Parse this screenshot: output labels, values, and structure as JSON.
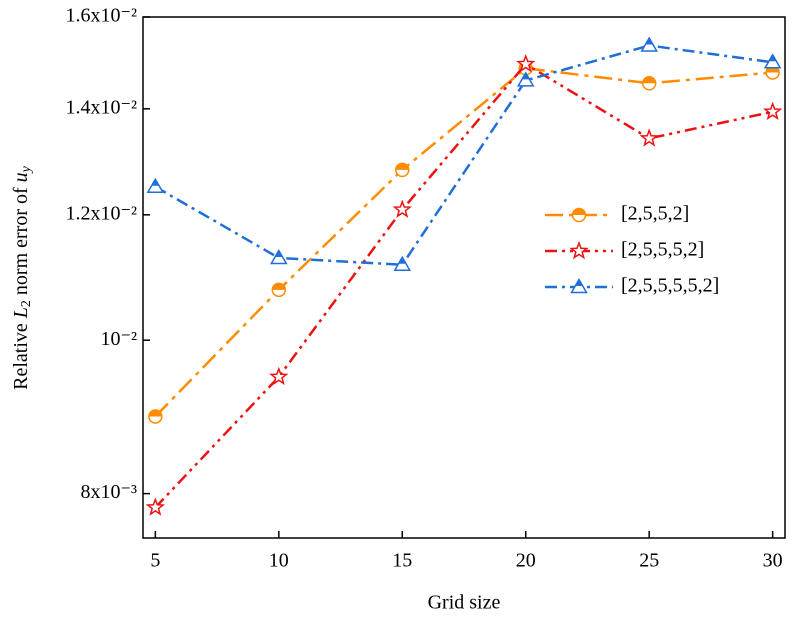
{
  "chart_data": {
    "type": "line",
    "x_label": "Grid size",
    "y_label": [
      "Relative ",
      "L",
      "2",
      " norm error of ",
      "u",
      "y"
    ],
    "x": [
      5,
      10,
      15,
      20,
      25,
      30
    ],
    "xlim": [
      4.5,
      30.5
    ],
    "xticks": [
      5,
      10,
      15,
      20,
      25,
      30
    ],
    "ylim": [
      0.0075,
      0.016
    ],
    "yticks": [
      {
        "value": 0.008,
        "label": "8x10⁻³"
      },
      {
        "value": 0.01,
        "label": "10⁻²"
      },
      {
        "value": 0.012,
        "label": "1.2x10⁻²"
      },
      {
        "value": 0.014,
        "label": "1.4x10⁻²"
      },
      {
        "value": 0.016,
        "label": "1.6x10⁻²"
      }
    ],
    "log_y": true,
    "legend": "right",
    "series": [
      {
        "name": "[2,5,5,2]",
        "color": "#ff8c00",
        "marker": "circle",
        "dash": "18 6 4 6",
        "values": [
          0.00895,
          0.01076,
          0.01281,
          0.01485,
          0.01453,
          0.01476
        ]
      },
      {
        "name": "[2,5,5,5,2]",
        "color": "#ee1111",
        "marker": "star",
        "dash": "12 5 3 5 3 5",
        "values": [
          0.00784,
          0.00948,
          0.01209,
          0.01494,
          0.01341,
          0.01394
        ]
      },
      {
        "name": "[2,5,5,5,5,2]",
        "color": "#1f6fd6",
        "marker": "triangle",
        "dash": "12 5 3 5",
        "values": [
          0.0125,
          0.01127,
          0.01116,
          0.01459,
          0.01535,
          0.01498
        ]
      }
    ]
  }
}
